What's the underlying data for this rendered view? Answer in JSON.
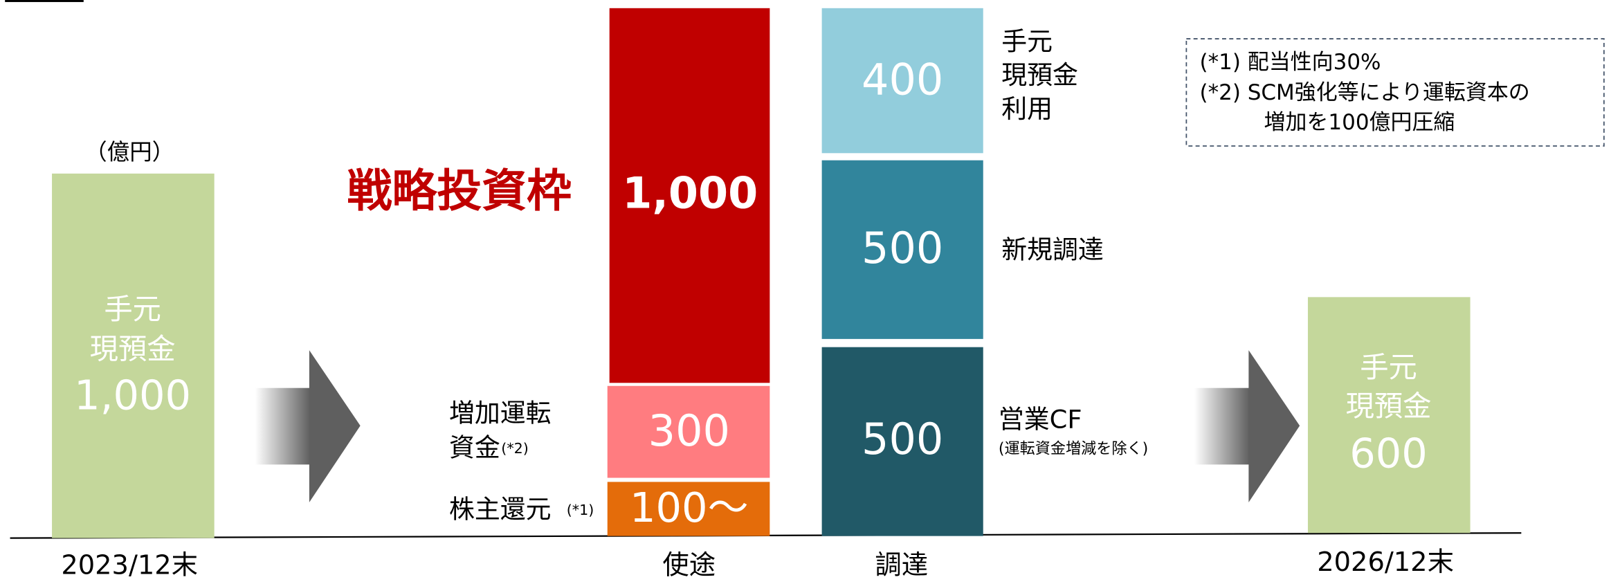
{
  "unit": "（億円）",
  "strategic_label": "戦略投資枠",
  "start": {
    "label": [
      "手元",
      "現預金"
    ],
    "value": "1,000",
    "period": "2023/12末"
  },
  "uses": {
    "axis_label": "使途",
    "items": [
      {
        "value": "1,000"
      },
      {
        "label": [
          "増加運転",
          "資金"
        ],
        "note": "(*2)",
        "value": "300"
      },
      {
        "label": [
          "株主還元"
        ],
        "note": "(*1)",
        "value": "100～"
      }
    ]
  },
  "sources": {
    "axis_label": "調達",
    "items": [
      {
        "label": [
          "手元",
          "現預金",
          "利用"
        ],
        "value": "400"
      },
      {
        "label": [
          "新規調達"
        ],
        "value": "500"
      },
      {
        "label": [
          "営業CF"
        ],
        "sublabel": "(運転資金増減を除く)",
        "value": "500"
      }
    ]
  },
  "end": {
    "label": [
      "手元",
      "現預金"
    ],
    "value": "600",
    "period": "2026/12末"
  },
  "notes": [
    "(*1) 配当性向30%",
    "(*2) SCM強化等により運転資本の",
    "増加を100億円圧縮"
  ]
}
